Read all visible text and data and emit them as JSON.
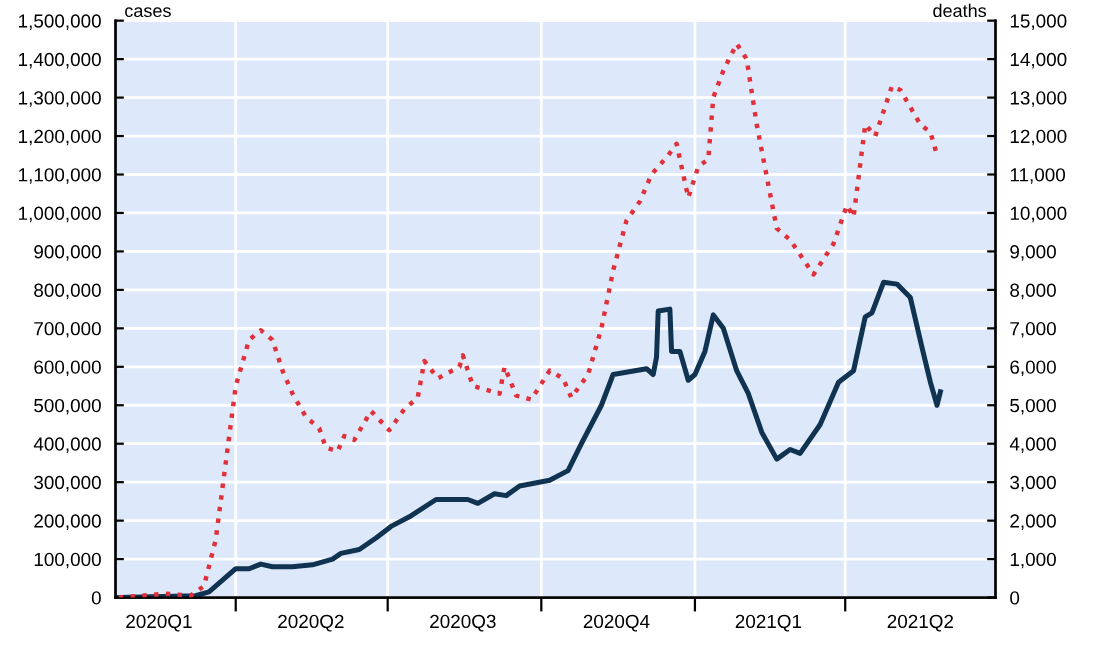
{
  "chart_data": {
    "type": "line",
    "ylabel": "cases",
    "y2label": "deaths",
    "xlim": [
      "2020-01-20",
      "2021-06-30"
    ],
    "xticks": [
      {
        "value": "2020-02-15",
        "label": "2020Q1"
      },
      {
        "value": "2020-04-01",
        "label": null
      },
      {
        "value": "2020-05-16",
        "label": "2020Q2"
      },
      {
        "value": "2020-07-01",
        "label": null
      },
      {
        "value": "2020-08-15",
        "label": "2020Q3"
      },
      {
        "value": "2020-10-01",
        "label": null
      },
      {
        "value": "2020-11-15",
        "label": "2020Q4"
      },
      {
        "value": "2021-01-01",
        "label": null
      },
      {
        "value": "2021-02-14",
        "label": "2021Q1"
      },
      {
        "value": "2021-04-01",
        "label": null
      },
      {
        "value": "2021-05-16",
        "label": "2021Q2"
      }
    ],
    "ylim": [
      0,
      1500000
    ],
    "yticks": [
      {
        "value": 0,
        "label": "0"
      },
      {
        "value": 100000,
        "label": "100,000"
      },
      {
        "value": 200000,
        "label": "200,000"
      },
      {
        "value": 300000,
        "label": "300,000"
      },
      {
        "value": 400000,
        "label": "400,000"
      },
      {
        "value": 500000,
        "label": "500,000"
      },
      {
        "value": 600000,
        "label": "600,000"
      },
      {
        "value": 700000,
        "label": "700,000"
      },
      {
        "value": 800000,
        "label": "800,000"
      },
      {
        "value": 900000,
        "label": "900,000"
      },
      {
        "value": 1000000,
        "label": "1,000,000"
      },
      {
        "value": 1100000,
        "label": "1,100,000"
      },
      {
        "value": 1200000,
        "label": "1,200,000"
      },
      {
        "value": 1300000,
        "label": "1,300,000"
      },
      {
        "value": 1400000,
        "label": "1,400,000"
      },
      {
        "value": 1500000,
        "label": "1,500,000"
      }
    ],
    "y2lim": [
      0,
      15000
    ],
    "y2ticks": [
      {
        "value": 0,
        "label": "0"
      },
      {
        "value": 1000,
        "label": "1,000"
      },
      {
        "value": 2000,
        "label": "2,000"
      },
      {
        "value": 3000,
        "label": "3,000"
      },
      {
        "value": 4000,
        "label": "4,000"
      },
      {
        "value": 5000,
        "label": "5,000"
      },
      {
        "value": 6000,
        "label": "6,000"
      },
      {
        "value": 7000,
        "label": "7,000"
      },
      {
        "value": 8000,
        "label": "8,000"
      },
      {
        "value": 9000,
        "label": "9,000"
      },
      {
        "value": 10000,
        "label": "10,000"
      },
      {
        "value": 11000,
        "label": "11,000"
      },
      {
        "value": 12000,
        "label": "12,000"
      },
      {
        "value": 13000,
        "label": "13,000"
      },
      {
        "value": 14000,
        "label": "14,000"
      },
      {
        "value": 15000,
        "label": "15,000"
      }
    ],
    "grid": true,
    "series": [
      {
        "color": "#0f3350",
        "line_style": "solid",
        "x": [
          "2020-01-22",
          "2020-03-08",
          "2020-03-16",
          "2020-04-01",
          "2020-04-09",
          "2020-04-16",
          "2020-04-23",
          "2020-05-05",
          "2020-05-17",
          "2020-05-29",
          "2020-06-03",
          "2020-06-14",
          "2020-06-24",
          "2020-07-03",
          "2020-07-14",
          "2020-07-30",
          "2020-08-18",
          "2020-08-24",
          "2020-09-03",
          "2020-09-10",
          "2020-09-18",
          "2020-10-06",
          "2020-10-17",
          "2020-10-25",
          "2020-11-06",
          "2020-11-13",
          "2020-12-03",
          "2020-12-07",
          "2020-12-09",
          "2020-12-10",
          "2020-12-17",
          "2020-12-18",
          "2020-12-23",
          "2020-12-28",
          "2021-01-01",
          "2021-01-07",
          "2021-01-12",
          "2021-01-18",
          "2021-01-26",
          "2021-02-02",
          "2021-02-10",
          "2021-02-19",
          "2021-02-27",
          "2021-03-05",
          "2021-03-17",
          "2021-03-28",
          "2021-04-06",
          "2021-04-13",
          "2021-04-17",
          "2021-04-24",
          "2021-05-02",
          "2021-05-10",
          "2021-05-17",
          "2021-05-22",
          "2021-05-26",
          "2021-05-28"
        ],
        "values": [
          0,
          5000,
          15000,
          75000,
          75000,
          87000,
          80000,
          80000,
          85000,
          100000,
          115000,
          125000,
          155000,
          185000,
          210000,
          255000,
          255000,
          245000,
          270000,
          265000,
          290000,
          305000,
          330000,
          400000,
          500000,
          580000,
          595000,
          580000,
          625000,
          745000,
          750000,
          640000,
          640000,
          565000,
          580000,
          640000,
          735000,
          700000,
          590000,
          530000,
          430000,
          360000,
          385000,
          375000,
          450000,
          560000,
          590000,
          730000,
          740000,
          820000,
          815000,
          780000,
          650000,
          560000,
          500000,
          535000
        ]
      },
      {
        "color": "#e0303a",
        "line_style": "dotted",
        "axis": "y2",
        "x": [
          "2020-01-22",
          "2020-02-19",
          "2020-03-05",
          "2020-03-13",
          "2020-03-20",
          "2020-03-26",
          "2020-04-01",
          "2020-04-09",
          "2020-04-16",
          "2020-04-23",
          "2020-04-29",
          "2020-05-05",
          "2020-05-13",
          "2020-05-21",
          "2020-05-25",
          "2020-06-01",
          "2020-06-05",
          "2020-06-11",
          "2020-06-21",
          "2020-07-02",
          "2020-07-11",
          "2020-07-19",
          "2020-07-23",
          "2020-07-31",
          "2020-08-13",
          "2020-08-15",
          "2020-08-21",
          "2020-09-06",
          "2020-09-09",
          "2020-09-16",
          "2020-09-25",
          "2020-10-06",
          "2020-10-14",
          "2020-10-19",
          "2020-10-29",
          "2020-11-06",
          "2020-11-13",
          "2020-11-21",
          "2020-11-29",
          "2020-12-06",
          "2020-12-16",
          "2020-12-21",
          "2020-12-28",
          "2021-01-03",
          "2021-01-09",
          "2021-01-12",
          "2021-01-18",
          "2021-01-26",
          "2021-02-01",
          "2021-02-07",
          "2021-02-19",
          "2021-02-27",
          "2021-03-13",
          "2021-03-25",
          "2021-04-02",
          "2021-04-06",
          "2021-04-13",
          "2021-04-19",
          "2021-04-29",
          "2021-05-04",
          "2021-05-08",
          "2021-05-16",
          "2021-05-22",
          "2021-05-26"
        ],
        "values": [
          0,
          100,
          50,
          300,
          1500,
          3500,
          5500,
          6700,
          6950,
          6700,
          5900,
          5300,
          4700,
          4400,
          3900,
          3800,
          4200,
          4100,
          4850,
          4350,
          4900,
          5200,
          6150,
          5700,
          6000,
          6300,
          5500,
          5300,
          6000,
          5250,
          5150,
          5900,
          5700,
          5200,
          5800,
          7000,
          8500,
          9800,
          10300,
          11000,
          11500,
          11800,
          10400,
          11200,
          11400,
          13000,
          13700,
          14400,
          14000,
          12300,
          9600,
          9300,
          8400,
          9200,
          10200,
          9900,
          12300,
          12000,
          13300,
          13200,
          12900,
          12300,
          12100,
          11500
        ]
      }
    ]
  }
}
